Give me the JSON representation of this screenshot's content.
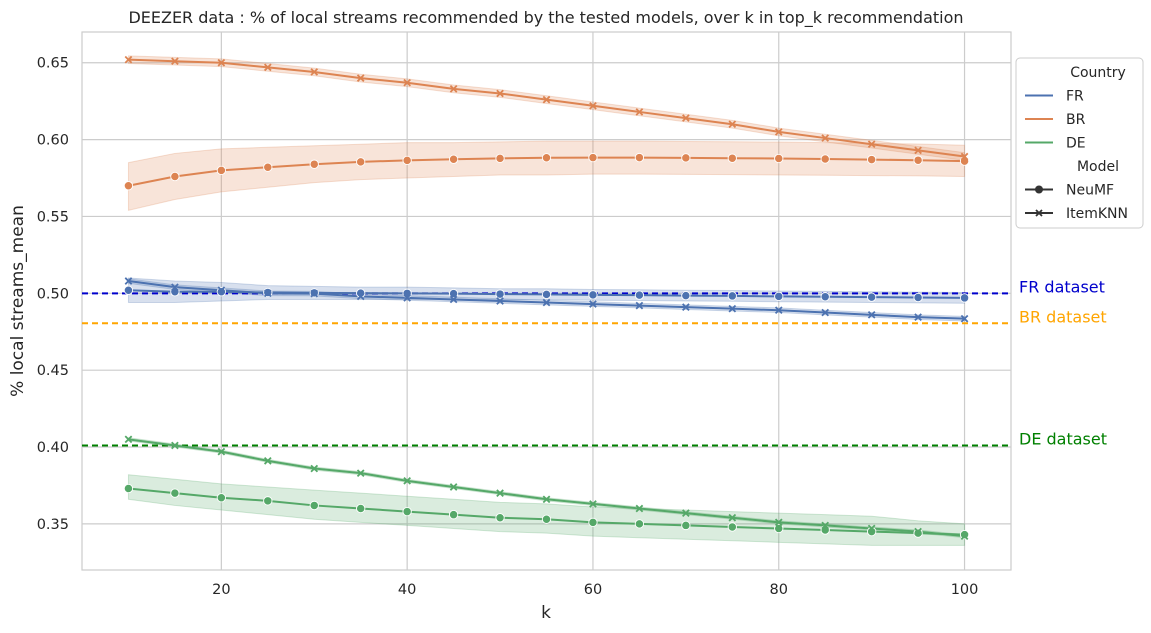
{
  "chart_data": {
    "type": "line",
    "title": "DEEZER data : % of local streams recommended by the tested models, over k in top_k recommendation",
    "xlabel": "k",
    "ylabel": "% local streams_mean",
    "xlim": [
      5,
      105
    ],
    "ylim": [
      0.32,
      0.67
    ],
    "xticks": [
      20,
      40,
      60,
      80,
      100
    ],
    "yticks": [
      0.35,
      0.4,
      0.45,
      0.5,
      0.55,
      0.6,
      0.65
    ],
    "grid": true,
    "legend_placement": "outside-right-top",
    "legend": {
      "hue_title": "Country",
      "style_title": "Model",
      "hue_entries": [
        {
          "name": "FR",
          "color": "#4c72b0"
        },
        {
          "name": "BR",
          "color": "#dd8452"
        },
        {
          "name": "DE",
          "color": "#55a868"
        }
      ],
      "style_entries": [
        {
          "name": "NeuMF",
          "marker": "circle"
        },
        {
          "name": "ItemKNN",
          "marker": "x"
        }
      ]
    },
    "x": [
      10,
      15,
      20,
      25,
      30,
      35,
      40,
      45,
      50,
      55,
      60,
      65,
      70,
      75,
      80,
      85,
      90,
      95,
      100
    ],
    "series": [
      {
        "country": "FR",
        "model": "NeuMF",
        "color": "#4c72b0",
        "marker": "circle",
        "values": [
          0.502,
          0.501,
          0.501,
          0.5005,
          0.5003,
          0.5001,
          0.5,
          0.4998,
          0.4995,
          0.4993,
          0.499,
          0.4988,
          0.4985,
          0.4983,
          0.498,
          0.4978,
          0.4975,
          0.4973,
          0.497
        ],
        "ci_low": [
          0.494,
          0.494,
          0.495,
          0.496,
          0.496,
          0.496,
          0.496,
          0.496,
          0.496,
          0.496,
          0.4955,
          0.4953,
          0.495,
          0.4948,
          0.4945,
          0.4943,
          0.494,
          0.4938,
          0.4935
        ],
        "ci_high": [
          0.51,
          0.508,
          0.507,
          0.505,
          0.5045,
          0.504,
          0.504,
          0.5035,
          0.503,
          0.503,
          0.5025,
          0.5023,
          0.502,
          0.5018,
          0.5015,
          0.5013,
          0.501,
          0.5008,
          0.5005
        ]
      },
      {
        "country": "FR",
        "model": "ItemKNN",
        "color": "#4c72b0",
        "marker": "x",
        "values": [
          0.508,
          0.504,
          0.502,
          0.5,
          0.4998,
          0.498,
          0.497,
          0.496,
          0.495,
          0.494,
          0.493,
          0.492,
          0.491,
          0.49,
          0.489,
          0.4875,
          0.486,
          0.4845,
          0.4835
        ],
        "ci_low": [
          0.5065,
          0.5025,
          0.5005,
          0.4985,
          0.4983,
          0.4965,
          0.4955,
          0.4945,
          0.4935,
          0.4925,
          0.4915,
          0.4905,
          0.4895,
          0.4885,
          0.4875,
          0.486,
          0.4845,
          0.483,
          0.482
        ],
        "ci_high": [
          0.5095,
          0.5055,
          0.5035,
          0.5015,
          0.5013,
          0.4995,
          0.4985,
          0.4975,
          0.4965,
          0.4955,
          0.4945,
          0.4935,
          0.4925,
          0.4915,
          0.4905,
          0.489,
          0.4875,
          0.486,
          0.485
        ]
      },
      {
        "country": "BR",
        "model": "NeuMF",
        "color": "#dd8452",
        "marker": "circle",
        "values": [
          0.57,
          0.576,
          0.58,
          0.582,
          0.584,
          0.5855,
          0.5865,
          0.5872,
          0.5878,
          0.5882,
          0.5883,
          0.5883,
          0.5881,
          0.5879,
          0.5877,
          0.5874,
          0.587,
          0.5866,
          0.586
        ],
        "ci_low": [
          0.554,
          0.561,
          0.566,
          0.569,
          0.572,
          0.574,
          0.575,
          0.576,
          0.577,
          0.577,
          0.5775,
          0.5775,
          0.5774,
          0.5772,
          0.577,
          0.5768,
          0.5766,
          0.5764,
          0.576
        ],
        "ci_high": [
          0.585,
          0.591,
          0.594,
          0.595,
          0.596,
          0.597,
          0.598,
          0.598,
          0.5985,
          0.599,
          0.599,
          0.599,
          0.5988,
          0.5986,
          0.5984,
          0.598,
          0.5976,
          0.5971,
          0.5963
        ]
      },
      {
        "country": "BR",
        "model": "ItemKNN",
        "color": "#dd8452",
        "marker": "x",
        "values": [
          0.652,
          0.651,
          0.65,
          0.647,
          0.644,
          0.64,
          0.637,
          0.633,
          0.63,
          0.626,
          0.622,
          0.618,
          0.614,
          0.61,
          0.605,
          0.601,
          0.597,
          0.593,
          0.589
        ],
        "ci_low": [
          0.6495,
          0.6485,
          0.6475,
          0.6445,
          0.6415,
          0.6375,
          0.6345,
          0.6305,
          0.6275,
          0.6235,
          0.6195,
          0.6155,
          0.6115,
          0.6075,
          0.6025,
          0.5985,
          0.5945,
          0.5905,
          0.5865
        ],
        "ci_high": [
          0.6545,
          0.6535,
          0.6525,
          0.6495,
          0.6465,
          0.6425,
          0.6395,
          0.6355,
          0.6325,
          0.6285,
          0.6245,
          0.6205,
          0.6165,
          0.6125,
          0.6075,
          0.6035,
          0.5995,
          0.5955,
          0.5915
        ]
      },
      {
        "country": "DE",
        "model": "NeuMF",
        "color": "#55a868",
        "marker": "circle",
        "values": [
          0.373,
          0.37,
          0.367,
          0.365,
          0.362,
          0.36,
          0.358,
          0.356,
          0.354,
          0.353,
          0.351,
          0.35,
          0.349,
          0.348,
          0.347,
          0.346,
          0.345,
          0.344,
          0.343
        ],
        "ci_low": [
          0.366,
          0.362,
          0.359,
          0.356,
          0.353,
          0.351,
          0.349,
          0.347,
          0.345,
          0.344,
          0.342,
          0.341,
          0.34,
          0.339,
          0.338,
          0.337,
          0.336,
          0.336,
          0.336
        ],
        "ci_high": [
          0.382,
          0.379,
          0.376,
          0.374,
          0.372,
          0.37,
          0.368,
          0.366,
          0.364,
          0.363,
          0.361,
          0.36,
          0.359,
          0.358,
          0.357,
          0.356,
          0.355,
          0.352,
          0.35
        ]
      },
      {
        "country": "DE",
        "model": "ItemKNN",
        "color": "#55a868",
        "marker": "x",
        "values": [
          0.405,
          0.401,
          0.397,
          0.391,
          0.386,
          0.383,
          0.378,
          0.374,
          0.37,
          0.366,
          0.363,
          0.36,
          0.357,
          0.354,
          0.351,
          0.349,
          0.347,
          0.345,
          0.342
        ],
        "ci_low": [
          0.404,
          0.4,
          0.396,
          0.39,
          0.385,
          0.382,
          0.377,
          0.373,
          0.369,
          0.365,
          0.362,
          0.359,
          0.356,
          0.353,
          0.35,
          0.348,
          0.346,
          0.344,
          0.341
        ],
        "ci_high": [
          0.406,
          0.402,
          0.398,
          0.392,
          0.387,
          0.384,
          0.379,
          0.375,
          0.371,
          0.367,
          0.364,
          0.361,
          0.358,
          0.355,
          0.352,
          0.35,
          0.348,
          0.346,
          0.343
        ]
      }
    ],
    "reference_lines": [
      {
        "label": "FR dataset",
        "y": 0.5,
        "color": "#0000cc"
      },
      {
        "label": "BR dataset",
        "y": 0.4805,
        "color": "#ffa500"
      },
      {
        "label": "DE dataset",
        "y": 0.401,
        "color": "#008000"
      }
    ]
  }
}
